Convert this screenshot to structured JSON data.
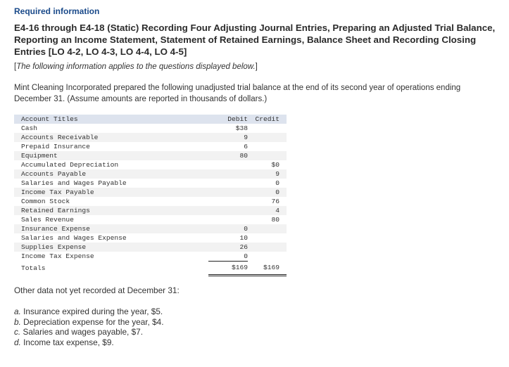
{
  "header": {
    "required_label": "Required information",
    "title": "E4-16 through E4-18 (Static) Recording Four Adjusting Journal Entries, Preparing an Adjusted Trial Balance, Reporting an Income Statement, Statement of Retained Earnings, Balance Sheet and Recording Closing Entries [LO 4-2, LO 4-3, LO 4-4, LO 4-5]",
    "note_open": "[",
    "note_text": "The following information applies to the questions displayed below.",
    "note_close": "]"
  },
  "intro": "Mint Cleaning Incorporated prepared the following unadjusted trial balance at the end of its second year of operations ending December 31. (Assume amounts are reported in thousands of dollars.)",
  "trial_balance": {
    "headers": {
      "account": "Account Titles",
      "debit": "Debit",
      "credit": "Credit"
    },
    "rows": [
      {
        "account": "Cash",
        "debit": "$38",
        "credit": ""
      },
      {
        "account": "Accounts Receivable",
        "debit": "9",
        "credit": ""
      },
      {
        "account": "Prepaid Insurance",
        "debit": "6",
        "credit": ""
      },
      {
        "account": "Equipment",
        "debit": "80",
        "credit": ""
      },
      {
        "account": "Accumulated Depreciation",
        "debit": "",
        "credit": "$0"
      },
      {
        "account": "Accounts Payable",
        "debit": "",
        "credit": "9"
      },
      {
        "account": "Salaries and Wages Payable",
        "debit": "",
        "credit": "0"
      },
      {
        "account": "Income Tax Payable",
        "debit": "",
        "credit": "0"
      },
      {
        "account": "Common Stock",
        "debit": "",
        "credit": "76"
      },
      {
        "account": "Retained Earnings",
        "debit": "",
        "credit": "4"
      },
      {
        "account": "Sales Revenue",
        "debit": "",
        "credit": "80"
      },
      {
        "account": "Insurance Expense",
        "debit": "0",
        "credit": ""
      },
      {
        "account": "Salaries and Wages Expense",
        "debit": "10",
        "credit": ""
      },
      {
        "account": "Supplies Expense",
        "debit": "26",
        "credit": ""
      },
      {
        "account": "Income Tax Expense",
        "debit": "0",
        "credit": ""
      }
    ],
    "totals": {
      "account": "Totals",
      "debit": "$169",
      "credit": "$169"
    }
  },
  "other_data": {
    "heading": "Other data not yet recorded at December 31:",
    "items": [
      {
        "letter": "a.",
        "text": " Insurance expired during the year, $5."
      },
      {
        "letter": "b.",
        "text": " Depreciation expense for the year, $4."
      },
      {
        "letter": "c.",
        "text": " Salaries and wages payable, $7."
      },
      {
        "letter": "d.",
        "text": " Income tax expense, $9."
      }
    ]
  },
  "colors": {
    "required_label": "#1a4a8a",
    "table_header_bg": "#dde3ee",
    "table_alt_row_bg": "#f2f2f2"
  }
}
